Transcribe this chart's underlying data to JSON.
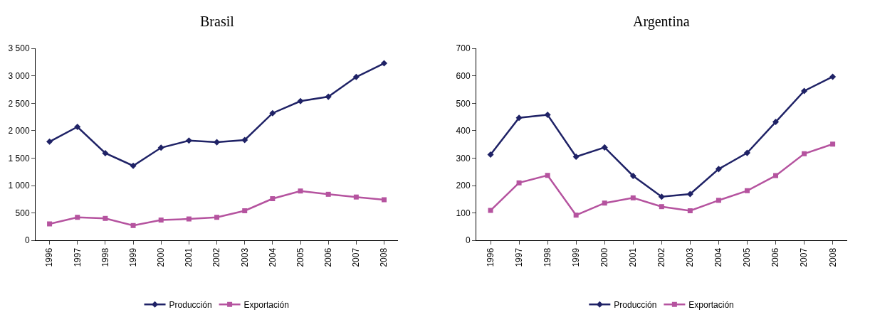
{
  "chart_data": [
    {
      "type": "line",
      "title": "Brasil",
      "categories": [
        "1996",
        "1997",
        "1998",
        "1999",
        "2000",
        "2001",
        "2002",
        "2003",
        "2004",
        "2005",
        "2006",
        "2007",
        "2008"
      ],
      "ylim": [
        0,
        3500
      ],
      "yticks": [
        0,
        {
          "value": 500,
          "label": "500"
        },
        {
          "value": 1000,
          "label": "1 000"
        },
        {
          "value": 1500,
          "label": "1 500"
        },
        {
          "value": 2000,
          "label": "2 000"
        },
        {
          "value": 2500,
          "label": "2 500"
        },
        {
          "value": 3000,
          "label": "3 000"
        },
        {
          "value": 3500,
          "label": "3 500"
        }
      ],
      "grid": false,
      "legend": "bottom",
      "series": [
        {
          "name": "Producción",
          "color": "#1f2266",
          "marker": "diamond",
          "values": [
            1800,
            2070,
            1590,
            1360,
            1690,
            1820,
            1790,
            1830,
            2320,
            2540,
            2620,
            2980,
            3230
          ]
        },
        {
          "name": "Exportación",
          "color": "#b5539f",
          "marker": "square",
          "values": [
            300,
            420,
            400,
            270,
            370,
            390,
            420,
            540,
            760,
            900,
            840,
            790,
            740
          ]
        }
      ]
    },
    {
      "type": "line",
      "title": "Argentina",
      "categories": [
        "1996",
        "1997",
        "1998",
        "1999",
        "2000",
        "2001",
        "2002",
        "2003",
        "2004",
        "2005",
        "2006",
        "2007",
        "2008"
      ],
      "ylim": [
        0,
        700
      ],
      "yticks": [
        0,
        100,
        200,
        300,
        400,
        500,
        600,
        700
      ],
      "grid": false,
      "legend": "bottom",
      "series": [
        {
          "name": "Producción",
          "color": "#1f2266",
          "marker": "diamond",
          "values": [
            313,
            447,
            458,
            305,
            339,
            235,
            159,
            169,
            260,
            319,
            432,
            545,
            597
          ]
        },
        {
          "name": "Exportación",
          "color": "#b5539f",
          "marker": "square",
          "values": [
            109,
            210,
            237,
            92,
            136,
            155,
            123,
            108,
            146,
            181,
            236,
            316,
            351
          ]
        }
      ]
    }
  ]
}
